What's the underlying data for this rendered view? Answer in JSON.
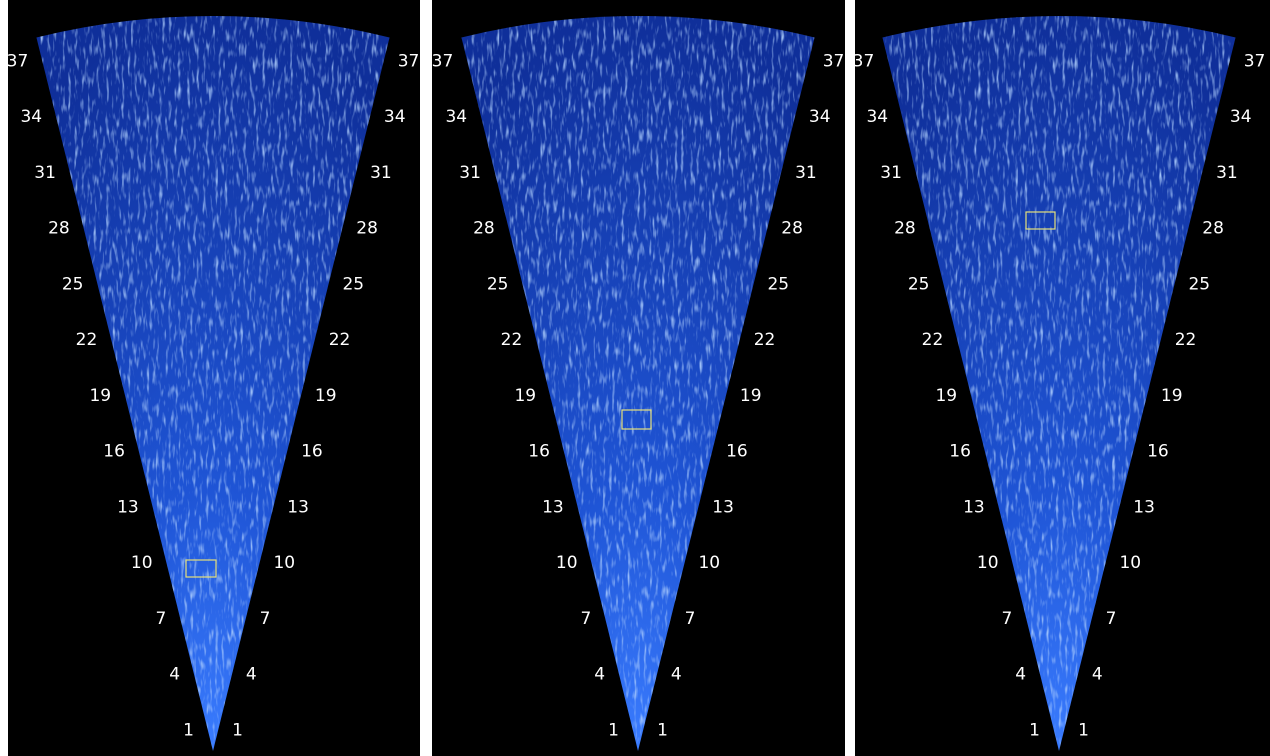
{
  "panels": [
    {
      "range_labels": [
        1,
        4,
        7,
        10,
        13,
        16,
        19,
        22,
        25,
        28,
        31,
        34,
        37
      ]
    },
    {
      "range_labels": [
        1,
        4,
        7,
        10,
        13,
        16,
        19,
        22,
        25,
        28,
        31,
        34,
        37
      ]
    },
    {
      "range_labels": [
        1,
        4,
        7,
        10,
        13,
        16,
        19,
        22,
        25,
        28,
        31,
        34,
        37
      ]
    }
  ]
}
